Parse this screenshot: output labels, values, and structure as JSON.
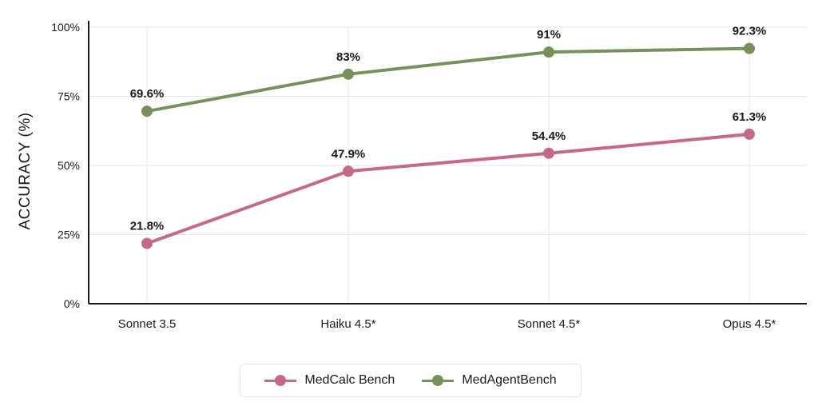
{
  "chart_data": {
    "type": "line",
    "categories": [
      "Sonnet 3.5",
      "Haiku 4.5*",
      "Sonnet 4.5*",
      "Opus 4.5*"
    ],
    "series": [
      {
        "name": "MedCalc Bench",
        "values": [
          21.8,
          47.9,
          54.4,
          61.3
        ],
        "labels": [
          "21.8%",
          "47.9%",
          "54.4%",
          "61.3%"
        ],
        "color": "#c4698a"
      },
      {
        "name": "MedAgentBench",
        "values": [
          69.6,
          83,
          91,
          92.3
        ],
        "labels": [
          "69.6%",
          "83%",
          "91%",
          "92.3%"
        ],
        "color": "#76915a"
      }
    ],
    "ylabel": "ACCURACY (%)",
    "ylim": [
      0,
      100
    ],
    "yticks": [
      0,
      25,
      50,
      75,
      100
    ],
    "ytick_labels": [
      "0%",
      "25%",
      "50%",
      "75%",
      "100%"
    ],
    "grid": true,
    "legend_position": "bottom-center"
  }
}
